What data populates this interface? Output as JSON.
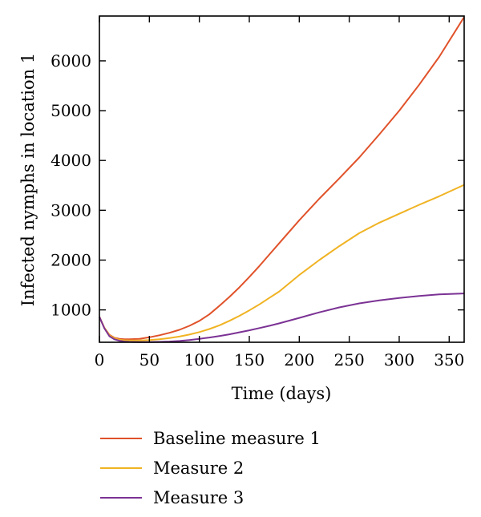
{
  "chart_data": {
    "type": "line",
    "xlabel": "Time (days)",
    "ylabel": "Infected nymphs in location 1",
    "xlim": [
      0,
      365
    ],
    "ylim": [
      350,
      6900
    ],
    "xticks": [
      0,
      50,
      100,
      150,
      200,
      250,
      300,
      350
    ],
    "yticks": [
      1000,
      2000,
      3000,
      4000,
      5000,
      6000
    ],
    "grid": false,
    "legend_position": "below",
    "series": [
      {
        "name": "Baseline measure 1",
        "color": "#e0522a",
        "x": [
          0,
          5,
          10,
          15,
          20,
          25,
          30,
          40,
          50,
          60,
          70,
          80,
          90,
          100,
          110,
          120,
          130,
          140,
          150,
          160,
          170,
          180,
          200,
          220,
          240,
          260,
          280,
          300,
          320,
          340,
          365
        ],
        "y": [
          860,
          640,
          500,
          440,
          420,
          410,
          410,
          420,
          450,
          490,
          540,
          600,
          680,
          780,
          910,
          1080,
          1260,
          1450,
          1660,
          1880,
          2110,
          2340,
          2800,
          3230,
          3640,
          4060,
          4520,
          5000,
          5520,
          6080,
          6880
        ]
      },
      {
        "name": "Measure 2",
        "color": "#f0b323",
        "x": [
          0,
          5,
          10,
          15,
          20,
          25,
          30,
          40,
          50,
          60,
          70,
          80,
          90,
          100,
          110,
          120,
          130,
          140,
          150,
          160,
          170,
          180,
          200,
          220,
          240,
          260,
          280,
          300,
          320,
          340,
          365
        ],
        "y": [
          860,
          640,
          490,
          430,
          400,
          390,
          385,
          385,
          395,
          410,
          435,
          465,
          505,
          555,
          615,
          690,
          780,
          880,
          990,
          1110,
          1240,
          1370,
          1700,
          2000,
          2280,
          2540,
          2750,
          2930,
          3110,
          3280,
          3510
        ]
      },
      {
        "name": "Measure 3",
        "color": "#7b3294",
        "x": [
          0,
          5,
          10,
          15,
          20,
          25,
          30,
          40,
          50,
          60,
          70,
          80,
          90,
          100,
          110,
          120,
          130,
          140,
          150,
          160,
          170,
          180,
          200,
          220,
          240,
          260,
          280,
          300,
          320,
          340,
          365
        ],
        "y": [
          860,
          630,
          470,
          410,
          380,
          365,
          358,
          355,
          355,
          358,
          365,
          375,
          395,
          420,
          445,
          475,
          510,
          550,
          590,
          635,
          680,
          730,
          840,
          950,
          1050,
          1130,
          1190,
          1240,
          1280,
          1310,
          1330
        ]
      }
    ]
  }
}
